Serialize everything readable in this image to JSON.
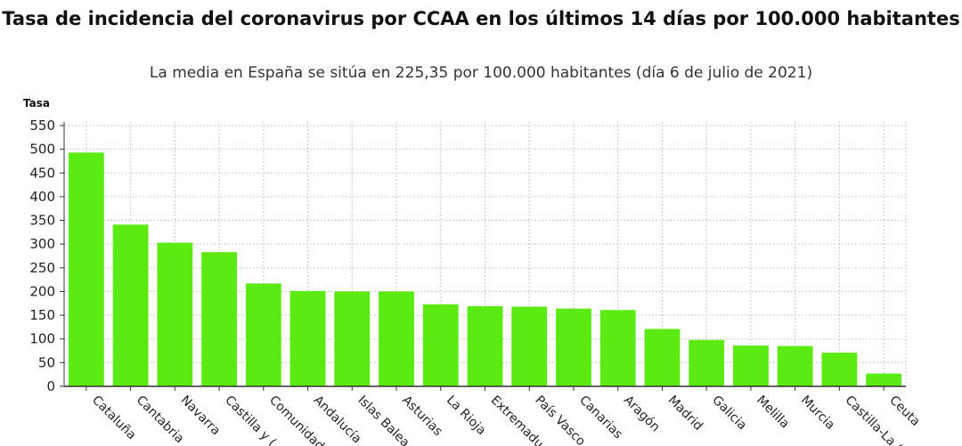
{
  "chart_data": {
    "type": "bar",
    "title": "Tasa de incidencia del coronavirus por CCAA en los últimos 14 días por 100.000 habitantes",
    "subtitle": "La media en España se sitúa en 225,35 por 100.000 habitantes (día 6 de julio de 2021)",
    "xlabel": "",
    "ylabel": "Tasa",
    "ylim": [
      0,
      550
    ],
    "yticks": [
      0,
      50,
      100,
      150,
      200,
      250,
      300,
      350,
      400,
      450,
      500,
      550
    ],
    "grid": true,
    "bar_color": "#5BEA12",
    "categories": [
      "Cataluña",
      "Cantabria",
      "Navarra",
      "Castilla y (…",
      "Comunidad (…",
      "Andalucía",
      "Islas Balea (…",
      "Asturias",
      "La Rioja",
      "Extremadu (…",
      "País Vasco",
      "Canarias",
      "Aragón",
      "Madrid",
      "Galicia",
      "Melilla",
      "Murcia",
      "Castilla-La (…",
      "Ceuta"
    ],
    "values": [
      493,
      341,
      303,
      283,
      217,
      201,
      200,
      200,
      173,
      169,
      168,
      164,
      161,
      121,
      98,
      86,
      85,
      71,
      27
    ]
  }
}
